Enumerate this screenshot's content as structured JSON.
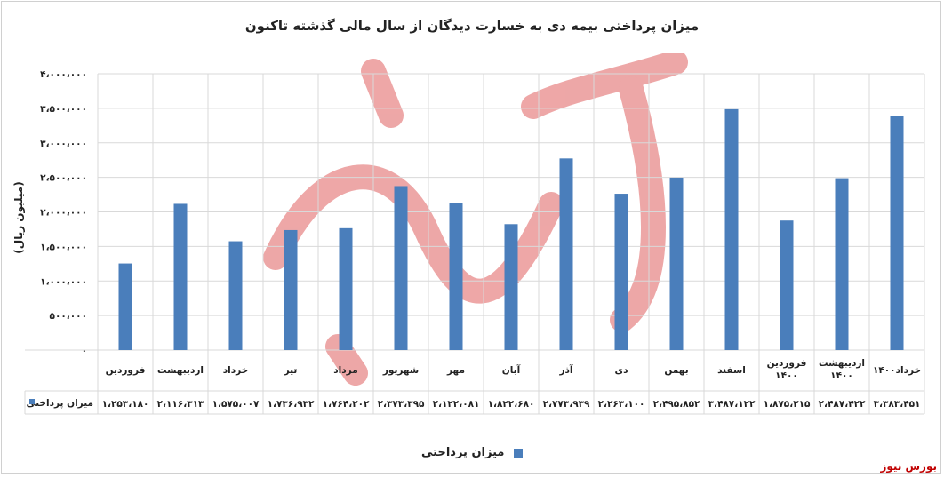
{
  "title": "میزان پرداختی بیمه دی به خسارت دیدگان از سال مالی گذشته تاکنون",
  "source_label": "بورس نیوز",
  "colors": {
    "bar": "#4a7ebb",
    "grid": "#d9d9d9",
    "source": "#c00000",
    "watermark": "#e88a8a"
  },
  "chart_data": {
    "type": "bar",
    "title": "میزان پرداختی بیمه دی به خسارت دیدگان از سال مالی گذشته تاکنون",
    "ylabel": "(میلیون ریال)",
    "xlabel": "",
    "ylim": [
      0,
      4000000
    ],
    "yticks": [
      0,
      500000,
      1000000,
      1500000,
      2000000,
      2500000,
      3000000,
      3500000,
      4000000
    ],
    "ytick_labels": [
      "۰",
      "۵۰۰،۰۰۰",
      "۱،۰۰۰،۰۰۰",
      "۱،۵۰۰،۰۰۰",
      "۲،۰۰۰،۰۰۰",
      "۲،۵۰۰،۰۰۰",
      "۳،۰۰۰،۰۰۰",
      "۳،۵۰۰،۰۰۰",
      "۴،۰۰۰،۰۰۰"
    ],
    "grid": true,
    "legend_position": "bottom",
    "categories": [
      [
        "فروردین"
      ],
      [
        "اردیبهشت"
      ],
      [
        "خرداد"
      ],
      [
        "تیر"
      ],
      [
        "مرداد"
      ],
      [
        "شهریور"
      ],
      [
        "مهر"
      ],
      [
        "آبان"
      ],
      [
        "آذر"
      ],
      [
        "دی"
      ],
      [
        "بهمن"
      ],
      [
        "اسفند"
      ],
      [
        "فروردین",
        "۱۴۰۰"
      ],
      [
        "اردیبهشت",
        "۱۴۰۰"
      ],
      [
        "خرداد۱۴۰۰"
      ]
    ],
    "series": [
      {
        "name": "میزان پرداختی",
        "values": [
          1253180,
          2116313,
          1575007,
          1736932,
          1764202,
          2373395,
          2122081,
          1822680,
          2773939,
          2263100,
          2495852,
          3487122,
          1875215,
          2487422,
          3383451
        ],
        "labels": [
          "۱،۲۵۳،۱۸۰",
          "۲،۱۱۶،۳۱۳",
          "۱،۵۷۵،۰۰۷",
          "۱،۷۳۶،۹۳۲",
          "۱،۷۶۴،۲۰۲",
          "۲،۳۷۳،۳۹۵",
          "۲،۱۲۲،۰۸۱",
          "۱،۸۲۲،۶۸۰",
          "۲،۷۷۳،۹۳۹",
          "۲،۲۶۳،۱۰۰",
          "۲،۴۹۵،۸۵۲",
          "۳،۴۸۷،۱۲۲",
          "۱،۸۷۵،۲۱۵",
          "۲،۴۸۷،۴۲۲",
          "۳،۳۸۳،۴۵۱"
        ]
      }
    ]
  }
}
